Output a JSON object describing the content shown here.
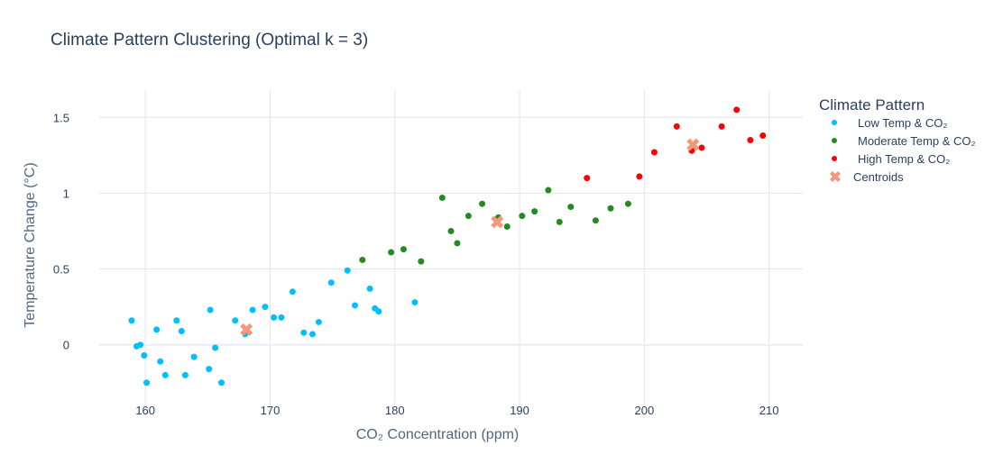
{
  "chart_data": {
    "type": "scatter",
    "title": "Climate Pattern Clustering (Optimal k = 3)",
    "xlabel": "CO₂ Concentration (ppm)",
    "ylabel": "Temperature Change (°C)",
    "xlim": [
      156.3,
      212.7
    ],
    "ylim": [
      -0.4,
      1.68
    ],
    "xticks": [
      160,
      170,
      180,
      190,
      200,
      210
    ],
    "yticks": [
      0,
      0.5,
      1,
      1.5
    ],
    "xtick_labels": [
      "160",
      "170",
      "180",
      "190",
      "200",
      "210"
    ],
    "ytick_labels": [
      "0",
      "0.5",
      "1",
      "1.5"
    ],
    "grid": true,
    "legend_position": "right",
    "legend_title": "Climate Pattern",
    "series": [
      {
        "name": "Low Temp & CO₂",
        "color": "#00bfff",
        "marker": "circle",
        "points": [
          [
            158.9,
            0.16
          ],
          [
            159.3,
            -0.01
          ],
          [
            159.6,
            0.0
          ],
          [
            159.9,
            -0.07
          ],
          [
            160.1,
            -0.25
          ],
          [
            160.9,
            0.1
          ],
          [
            161.2,
            -0.11
          ],
          [
            161.6,
            -0.2
          ],
          [
            162.5,
            0.16
          ],
          [
            162.9,
            0.09
          ],
          [
            163.2,
            -0.2
          ],
          [
            163.9,
            -0.08
          ],
          [
            165.1,
            -0.16
          ],
          [
            165.2,
            0.23
          ],
          [
            165.6,
            -0.02
          ],
          [
            166.1,
            -0.25
          ],
          [
            167.2,
            0.16
          ],
          [
            168.0,
            0.07
          ],
          [
            168.6,
            0.23
          ],
          [
            169.6,
            0.25
          ],
          [
            170.3,
            0.18
          ],
          [
            170.9,
            0.18
          ],
          [
            171.8,
            0.35
          ],
          [
            172.7,
            0.08
          ],
          [
            173.4,
            0.07
          ],
          [
            173.9,
            0.15
          ],
          [
            174.9,
            0.41
          ],
          [
            176.2,
            0.49
          ],
          [
            176.8,
            0.26
          ],
          [
            178.0,
            0.37
          ],
          [
            178.4,
            0.24
          ],
          [
            178.7,
            0.22
          ],
          [
            181.6,
            0.28
          ]
        ]
      },
      {
        "name": "Moderate Temp & CO₂",
        "color": "#228b22",
        "marker": "circle",
        "points": [
          [
            177.4,
            0.56
          ],
          [
            179.7,
            0.61
          ],
          [
            180.7,
            0.63
          ],
          [
            182.1,
            0.55
          ],
          [
            183.8,
            0.97
          ],
          [
            184.5,
            0.75
          ],
          [
            185.0,
            0.67
          ],
          [
            185.9,
            0.85
          ],
          [
            187.0,
            0.93
          ],
          [
            188.3,
            0.84
          ],
          [
            189.0,
            0.78
          ],
          [
            190.2,
            0.85
          ],
          [
            191.2,
            0.88
          ],
          [
            192.3,
            1.02
          ],
          [
            193.2,
            0.81
          ],
          [
            194.1,
            0.91
          ],
          [
            196.1,
            0.82
          ],
          [
            197.3,
            0.9
          ],
          [
            198.7,
            0.93
          ]
        ]
      },
      {
        "name": "High Temp & CO₂",
        "color": "#ff0000",
        "marker": "circle",
        "points": [
          [
            195.4,
            1.1
          ],
          [
            199.6,
            1.11
          ],
          [
            200.8,
            1.27
          ],
          [
            202.6,
            1.44
          ],
          [
            203.8,
            1.28
          ],
          [
            204.6,
            1.3
          ],
          [
            206.2,
            1.44
          ],
          [
            207.4,
            1.55
          ],
          [
            208.5,
            1.35
          ],
          [
            209.5,
            1.38
          ]
        ]
      },
      {
        "name": "Centroids",
        "color": "#f4977a",
        "marker": "x",
        "points": [
          [
            168.1,
            0.1
          ],
          [
            188.2,
            0.81
          ],
          [
            203.9,
            1.32
          ]
        ]
      }
    ]
  }
}
